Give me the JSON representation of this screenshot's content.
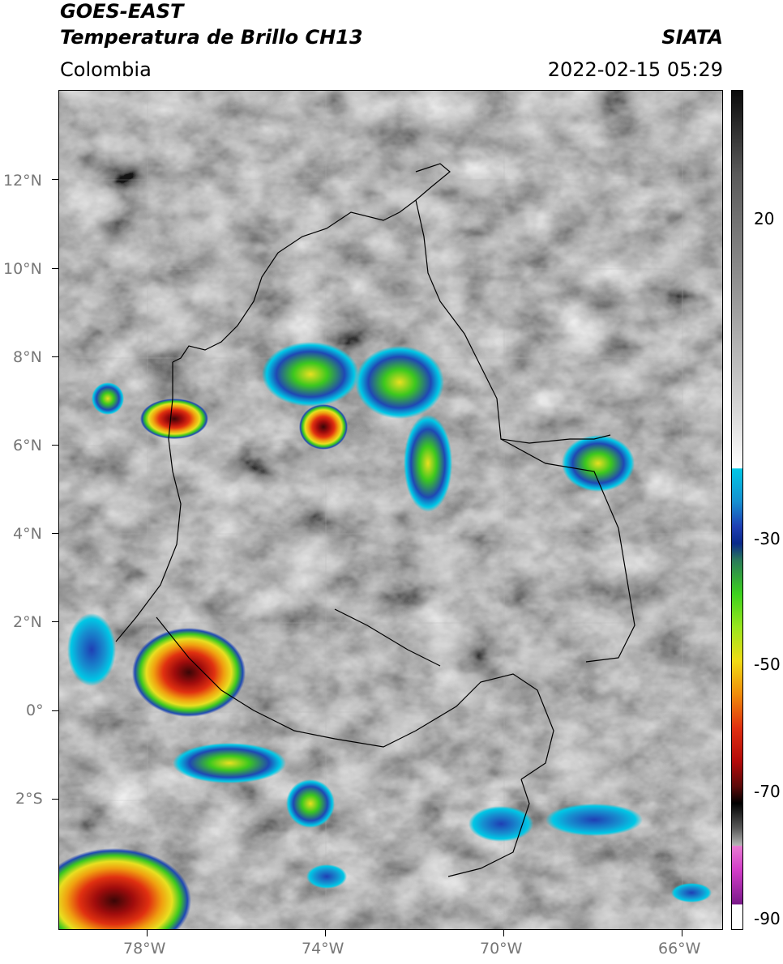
{
  "header": {
    "satellite": "GOES-EAST",
    "product": "Temperatura de Brillo CH13",
    "region": "Colombia",
    "source": "SIATA",
    "datetime": "2022-02-15 05:29"
  },
  "map": {
    "lat_labels": [
      "12°N",
      "10°N",
      "8°N",
      "6°N",
      "4°N",
      "2°N",
      "0°",
      "2°S"
    ],
    "lon_labels": [
      "78°W",
      "74°W",
      "70°W",
      "66°W"
    ]
  },
  "colorbar": {
    "labels": [
      "20",
      "-30",
      "-50",
      "-70",
      "-90"
    ],
    "colors": {
      "warm_gray": "#8a8a8a",
      "cyan": "#00c8e6",
      "blue": "#1f3fb4",
      "green": "#3cd21e",
      "yellow": "#f0dc14",
      "orange": "#f08c0a",
      "red": "#d21414",
      "dark_red": "#5a0a0a",
      "black": "#000000",
      "magenta": "#d23cc8",
      "purple": "#7a1a8a"
    }
  }
}
